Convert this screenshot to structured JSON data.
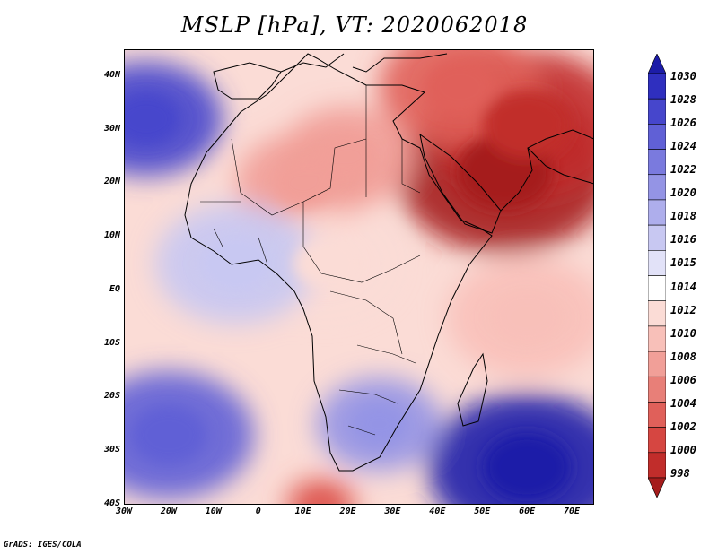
{
  "title": "MSLP [hPa], VT: 2020062018",
  "credit": "GrADS: IGES/COLA",
  "colors": {
    "998": "#a51c1c",
    "1000": "#c12d2b",
    "1002": "#d64641",
    "1004": "#e0605a",
    "1006": "#e87f78",
    "1008": "#f19f98",
    "1010": "#f8c0b9",
    "1012": "#fbdcd6",
    "1014": "#ffffff",
    "1015": "#e2e2f8",
    "1016": "#c8c8f2",
    "1018": "#aeaeec",
    "1020": "#9494e5",
    "1022": "#7a7ade",
    "1024": "#6060d6",
    "1026": "#4646cc",
    "1028": "#2f2fbf",
    "1030": "#1c1ca8"
  },
  "chart_data": {
    "type": "heatmap",
    "variable": "MSLP",
    "units": "hPa",
    "valid_time": "2020062018",
    "x_range": [
      -30,
      75
    ],
    "y_range": [
      -40,
      45
    ],
    "lon_ticks": [
      {
        "value": -30,
        "label": "30W"
      },
      {
        "value": -20,
        "label": "20W"
      },
      {
        "value": -10,
        "label": "10W"
      },
      {
        "value": 0,
        "label": "0"
      },
      {
        "value": 10,
        "label": "10E"
      },
      {
        "value": 20,
        "label": "20E"
      },
      {
        "value": 30,
        "label": "30E"
      },
      {
        "value": 40,
        "label": "40E"
      },
      {
        "value": 50,
        "label": "50E"
      },
      {
        "value": 60,
        "label": "60E"
      },
      {
        "value": 70,
        "label": "70E"
      }
    ],
    "lat_ticks": [
      {
        "value": 40,
        "label": "40N"
      },
      {
        "value": 30,
        "label": "30N"
      },
      {
        "value": 20,
        "label": "20N"
      },
      {
        "value": 10,
        "label": "10N"
      },
      {
        "value": 0,
        "label": "EQ"
      },
      {
        "value": -10,
        "label": "10S"
      },
      {
        "value": -20,
        "label": "20S"
      },
      {
        "value": -30,
        "label": "30S"
      },
      {
        "value": -40,
        "label": "40S"
      }
    ],
    "colorbar_levels": [
      "1030",
      "1028",
      "1026",
      "1024",
      "1022",
      "1020",
      "1018",
      "1016",
      "1015",
      "1014",
      "1012",
      "1010",
      "1008",
      "1006",
      "1004",
      "1002",
      "1000",
      "998"
    ],
    "pressure_centers": [
      {
        "lon": 55,
        "lat": 22,
        "value": 998
      },
      {
        "lon": 60,
        "lat": 31,
        "value": 1000
      },
      {
        "lon": 45,
        "lat": 38,
        "value": 1004
      },
      {
        "lon": 10,
        "lat": 20,
        "value": 1008
      },
      {
        "lon": 20,
        "lat": 25,
        "value": 1008
      },
      {
        "lon": 15,
        "lat": 5,
        "value": 1012
      },
      {
        "lon": 60,
        "lat": -5,
        "value": 1010
      },
      {
        "lon": -25,
        "lat": 32,
        "value": 1026
      },
      {
        "lon": -20,
        "lat": -27,
        "value": 1024
      },
      {
        "lon": 60,
        "lat": -33,
        "value": 1030
      },
      {
        "lon": 27,
        "lat": -25,
        "value": 1020
      },
      {
        "lon": 14,
        "lat": -40,
        "value": 1004
      },
      {
        "lon": -5,
        "lat": 5,
        "value": 1016
      }
    ]
  }
}
